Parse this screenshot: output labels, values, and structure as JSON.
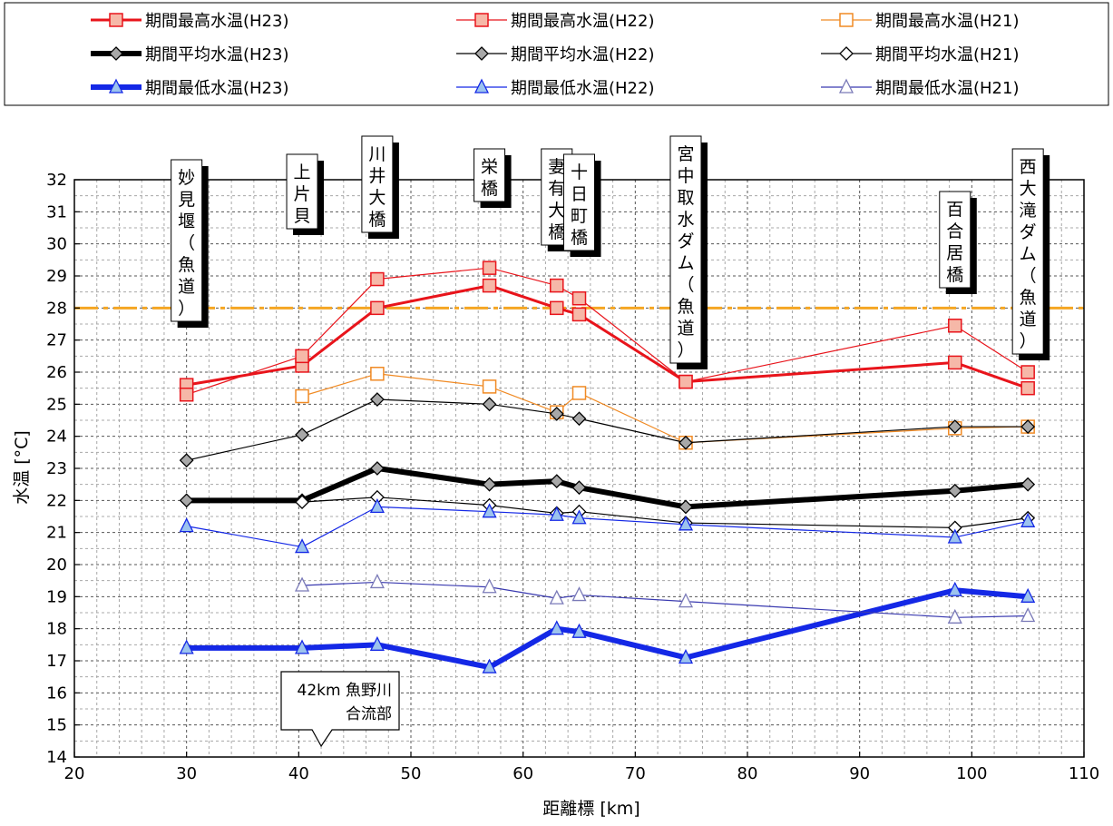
{
  "chart_data": {
    "type": "line",
    "xlabel": "距離標 [km]",
    "ylabel": "水温 [°C]",
    "xlim": [
      20,
      110
    ],
    "ylim": [
      14,
      32
    ],
    "x_ticks": [
      "20",
      "30",
      "40",
      "50",
      "60",
      "70",
      "80",
      "90",
      "100",
      "110"
    ],
    "y_ticks": [
      "14",
      "15",
      "16",
      "17",
      "18",
      "19",
      "20",
      "21",
      "22",
      "23",
      "24",
      "25",
      "26",
      "27",
      "28",
      "29",
      "30",
      "31",
      "32"
    ],
    "grid": true,
    "legend_position": "top",
    "reference_line": {
      "y": 28,
      "color": "#f5a623"
    },
    "series": [
      {
        "name": "期間最高水温(H23)",
        "color": "#e8141b",
        "marker": "square",
        "x": [
          30,
          40.3,
          47,
          57,
          63,
          65,
          74.5,
          98.5,
          105
        ],
        "values": [
          25.6,
          26.2,
          28.0,
          28.7,
          28.0,
          27.8,
          25.7,
          26.3,
          25.5
        ]
      },
      {
        "name": "期間最高水温(H22)",
        "color": "#e8141b",
        "marker": "square",
        "x": [
          30,
          40.3,
          47,
          57,
          63,
          65,
          74.5,
          98.5,
          105
        ],
        "values": [
          25.3,
          26.5,
          28.9,
          29.25,
          28.7,
          28.3,
          25.7,
          27.45,
          26.0
        ]
      },
      {
        "name": "期間最高水温(H21)",
        "color": "#f08a24",
        "marker": "square-open",
        "x": [
          40.3,
          47,
          57,
          63,
          65,
          74.5,
          98.5,
          105
        ],
        "values": [
          25.25,
          25.95,
          25.55,
          24.75,
          25.35,
          23.8,
          24.25,
          24.3
        ]
      },
      {
        "name": "期間平均水温(H23)",
        "color": "#000000",
        "marker": "diamond",
        "x": [
          30,
          40.3,
          47,
          57,
          63,
          65,
          74.5,
          98.5,
          105
        ],
        "values": [
          22.0,
          22.0,
          23.0,
          22.5,
          22.6,
          22.4,
          21.8,
          22.3,
          22.5
        ]
      },
      {
        "name": "期間平均水温(H22)",
        "color": "#000000",
        "marker": "diamond",
        "x": [
          30,
          40.3,
          47,
          57,
          63,
          65,
          74.5,
          98.5,
          105
        ],
        "values": [
          23.25,
          24.05,
          25.15,
          25.0,
          24.7,
          24.55,
          23.8,
          24.3,
          24.3
        ]
      },
      {
        "name": "期間平均水温(H21)",
        "color": "#000000",
        "marker": "diamond-open",
        "x": [
          40.3,
          47,
          57,
          63,
          65,
          74.5,
          98.5,
          105
        ],
        "values": [
          21.95,
          22.1,
          21.85,
          21.6,
          21.65,
          21.3,
          21.15,
          21.45
        ]
      },
      {
        "name": "期間最低水温(H23)",
        "color": "#1428e6",
        "marker": "triangle",
        "x": [
          30,
          40.3,
          47,
          57,
          63,
          65,
          74.5,
          98.5,
          105
        ],
        "values": [
          17.4,
          17.4,
          17.5,
          16.8,
          18.0,
          17.9,
          17.1,
          19.2,
          19.0
        ]
      },
      {
        "name": "期間最低水温(H22)",
        "color": "#1428e6",
        "marker": "triangle",
        "x": [
          30,
          40.3,
          47,
          57,
          63,
          65,
          74.5,
          98.5,
          105
        ],
        "values": [
          21.2,
          20.55,
          21.8,
          21.65,
          21.55,
          21.45,
          21.25,
          20.85,
          21.35
        ]
      },
      {
        "name": "期間最低水温(H21)",
        "color": "#1428e6",
        "marker": "triangle-open",
        "x": [
          40.3,
          47,
          57,
          63,
          65,
          74.5,
          98.5,
          105
        ],
        "values": [
          19.35,
          19.45,
          19.3,
          18.95,
          19.05,
          18.85,
          18.35,
          18.4
        ]
      }
    ],
    "location_labels": [
      {
        "km": 30,
        "text": "妙見堰（魚道）"
      },
      {
        "km": 40.3,
        "text": "上片貝"
      },
      {
        "km": 47,
        "text": "川井大橋"
      },
      {
        "km": 57,
        "text": "栄橋"
      },
      {
        "km": 63,
        "text": "妻有大橋"
      },
      {
        "km": 65,
        "text": "十日町橋"
      },
      {
        "km": 74.5,
        "text": "宮中取水ダム（魚道）"
      },
      {
        "km": 98.5,
        "text": "百合居橋"
      },
      {
        "km": 105,
        "text": "西大滝ダム（魚道）"
      }
    ],
    "annotation": {
      "km": 42,
      "line1": "42km 魚野川",
      "line2": "合流部"
    }
  }
}
